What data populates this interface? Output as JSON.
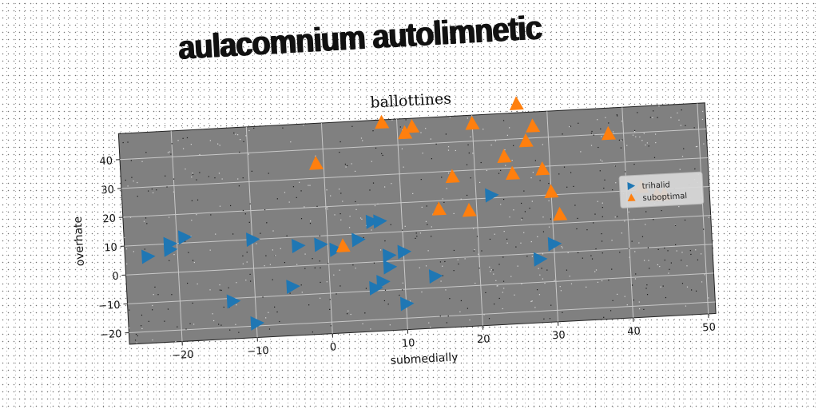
{
  "main_title": "aulacomnium autolimnetic",
  "chart_data": {
    "type": "scatter",
    "title": "ballottines",
    "xlabel": "submedially",
    "ylabel": "overhate",
    "xlim": [
      -27,
      51
    ],
    "ylim": [
      -24,
      49
    ],
    "xticks": [
      -20,
      -10,
      0,
      10,
      20,
      30,
      40,
      50
    ],
    "yticks": [
      -20,
      -10,
      0,
      10,
      20,
      30,
      40
    ],
    "grid": true,
    "legend_position": "right",
    "background_color": "#808080",
    "series": [
      {
        "name": "trihalid",
        "marker": "triangle-right",
        "color": "#1f77b4",
        "x": [
          -24,
          -21,
          -21,
          -19,
          -13,
          -10,
          -10,
          -5,
          -4,
          -1,
          1,
          4,
          6,
          6,
          7,
          7,
          8,
          8,
          10,
          10,
          14,
          22,
          28,
          30
        ],
        "y": [
          6,
          8,
          10,
          12,
          -11,
          10,
          -19,
          -7,
          7,
          7,
          5,
          8,
          14,
          -9,
          -7,
          14,
          -2,
          2,
          -15,
          3,
          -6,
          21,
          -2,
          3
        ]
      },
      {
        "name": "suboptimal",
        "marker": "triangle-up",
        "color": "#ff7f0e",
        "x": [
          -1,
          2,
          8,
          11,
          12,
          15,
          17,
          19,
          20,
          24,
          25,
          26,
          27,
          28,
          29,
          30,
          31,
          38,
          42,
          44,
          45
        ],
        "y": [
          35,
          6,
          48,
          44,
          46,
          17,
          28,
          16,
          46,
          34,
          28,
          52,
          39,
          44,
          29,
          21,
          13,
          40,
          21,
          18,
          18
        ]
      }
    ]
  }
}
